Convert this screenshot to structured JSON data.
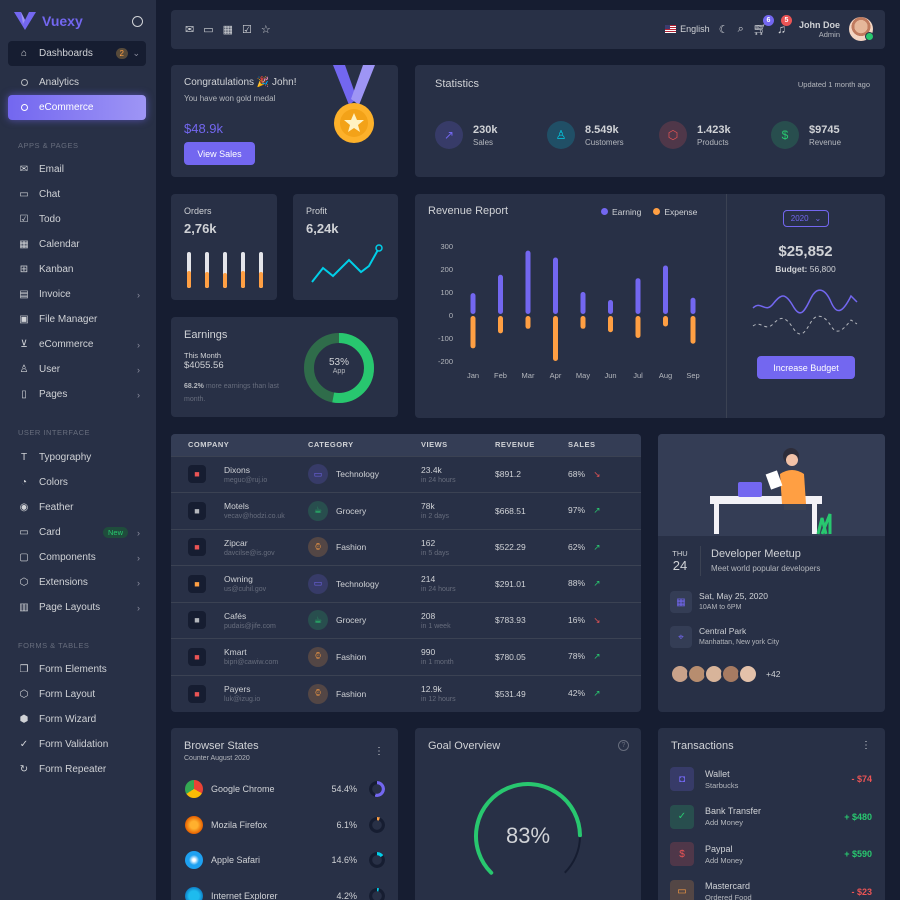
{
  "app": {
    "name": "Vuexy"
  },
  "sidebar": {
    "dashboards": {
      "label": "Dashboards",
      "badge": "2"
    },
    "dash_children": [
      {
        "label": "Analytics"
      },
      {
        "label": "eCommerce"
      }
    ],
    "sections": [
      "APPS & PAGES",
      "USER INTERFACE",
      "FORMS & TABLES"
    ],
    "apps": [
      {
        "label": "Email",
        "icon": "mail-icon"
      },
      {
        "label": "Chat",
        "icon": "chat-icon"
      },
      {
        "label": "Todo",
        "icon": "check-square-icon"
      },
      {
        "label": "Calendar",
        "icon": "calendar-icon"
      },
      {
        "label": "Kanban",
        "icon": "grid-icon"
      },
      {
        "label": "Invoice",
        "icon": "file-text-icon"
      },
      {
        "label": "File Manager",
        "icon": "save-icon"
      },
      {
        "label": "eCommerce",
        "icon": "cart-icon"
      },
      {
        "label": "User",
        "icon": "user-icon"
      },
      {
        "label": "Pages",
        "icon": "file-icon"
      }
    ],
    "ui": [
      {
        "label": "Typography",
        "icon": "type-icon"
      },
      {
        "label": "Colors",
        "icon": "droplet-icon"
      },
      {
        "label": "Feather",
        "icon": "eye-icon"
      },
      {
        "label": "Card",
        "icon": "credit-card-icon",
        "badge": "New"
      },
      {
        "label": "Components",
        "icon": "briefcase-icon"
      },
      {
        "label": "Extensions",
        "icon": "box-icon"
      },
      {
        "label": "Page Layouts",
        "icon": "layout-icon"
      }
    ],
    "forms": [
      {
        "label": "Form Elements",
        "icon": "copy-icon"
      },
      {
        "label": "Form Layout",
        "icon": "box-icon"
      },
      {
        "label": "Form Wizard",
        "icon": "package-icon"
      },
      {
        "label": "Form Validation",
        "icon": "check-circle-icon"
      },
      {
        "label": "Form Repeater",
        "icon": "rotate-icon"
      }
    ]
  },
  "header": {
    "language": "English",
    "cart_count": "6",
    "notif_count": "5",
    "user_name": "John Doe",
    "user_role": "Admin"
  },
  "congrats": {
    "title": "Congratulations 🎉 John!",
    "subtitle": "You have won gold medal",
    "amount": "$48.9k",
    "button": "View Sales"
  },
  "statistics": {
    "title": "Statistics",
    "updated": "Updated 1 month ago",
    "items": [
      {
        "value": "230k",
        "label": "Sales",
        "icon": "trending-up-icon",
        "color": "#7367f0"
      },
      {
        "value": "8.549k",
        "label": "Customers",
        "icon": "user-icon",
        "color": "#00cfe8"
      },
      {
        "value": "1.423k",
        "label": "Products",
        "icon": "box-icon",
        "color": "#ea5455"
      },
      {
        "value": "$9745",
        "label": "Revenue",
        "icon": "dollar-icon",
        "color": "#28c76f"
      }
    ]
  },
  "orders": {
    "title": "Orders",
    "value": "2,76k",
    "bar_levels": [
      0.8,
      0.75,
      0.7,
      0.8,
      0.75
    ]
  },
  "profit": {
    "title": "Profit",
    "value": "6,24k"
  },
  "earnings": {
    "title": "Earnings",
    "period": "This Month",
    "amount": "$4055.56",
    "pct": "68.2%",
    "note": "more earnings than last month.",
    "donut_value": "53%",
    "donut_label": "App",
    "donut_fraction": 0.53
  },
  "revenue": {
    "title": "Revenue Report",
    "legend": [
      "Earning",
      "Expense"
    ],
    "year": "2020",
    "total": "$25,852",
    "budget_label": "Budget:",
    "budget_value": "56,800",
    "button": "Increase Budget"
  },
  "chart_data": {
    "type": "bar",
    "categories": [
      "Jan",
      "Feb",
      "Mar",
      "Apr",
      "May",
      "Jun",
      "Jul",
      "Aug",
      "Sep"
    ],
    "series": [
      {
        "name": "Earning",
        "values": [
          95,
          175,
          280,
          250,
          100,
          65,
          160,
          215,
          75
        ]
      },
      {
        "name": "Expense",
        "values": [
          -145,
          -80,
          -60,
          -200,
          -60,
          -75,
          -100,
          -50,
          -125
        ]
      }
    ],
    "ylim": [
      -200,
      300
    ],
    "yticks": [
      "300",
      "200",
      "100",
      "0",
      "-100",
      "-200"
    ]
  },
  "table": {
    "headers": [
      "COMPANY",
      "CATEGORY",
      "VIEWS",
      "REVENUE",
      "SALES"
    ],
    "rows": [
      {
        "company": "Dixons",
        "email": "meguc@ruj.io",
        "category": "Technology",
        "views": "23.4k",
        "period": "in 24 hours",
        "revenue": "$891.2",
        "sales": "68%",
        "trend": "down"
      },
      {
        "company": "Motels",
        "email": "vecav@hodzi.co.uk",
        "category": "Grocery",
        "views": "78k",
        "period": "in 2 days",
        "revenue": "$668.51",
        "sales": "97%",
        "trend": "up"
      },
      {
        "company": "Zipcar",
        "email": "davcilse@is.gov",
        "category": "Fashion",
        "views": "162",
        "period": "in 5 days",
        "revenue": "$522.29",
        "sales": "62%",
        "trend": "up"
      },
      {
        "company": "Owning",
        "email": "us@cuhil.gov",
        "category": "Technology",
        "views": "214",
        "period": "in 24 hours",
        "revenue": "$291.01",
        "sales": "88%",
        "trend": "up"
      },
      {
        "company": "Cafés",
        "email": "pudais@jife.com",
        "category": "Grocery",
        "views": "208",
        "period": "in 1 week",
        "revenue": "$783.93",
        "sales": "16%",
        "trend": "down"
      },
      {
        "company": "Kmart",
        "email": "bipri@cawiw.com",
        "category": "Fashion",
        "views": "990",
        "period": "in 1 month",
        "revenue": "$780.05",
        "sales": "78%",
        "trend": "up"
      },
      {
        "company": "Payers",
        "email": "luk@izug.io",
        "category": "Fashion",
        "views": "12.9k",
        "period": "in 12 hours",
        "revenue": "$531.49",
        "sales": "42%",
        "trend": "up"
      }
    ]
  },
  "meetup": {
    "day": "THU",
    "date": "24",
    "title": "Developer Meetup",
    "subtitle": "Meet world popular developers",
    "when": "Sat, May 25, 2020",
    "time": "10AM to 6PM",
    "where": "Central Park",
    "address": "Manhattan, New york City",
    "more": "+42"
  },
  "browsers": {
    "title": "Browser States",
    "subtitle": "Counter August 2020",
    "items": [
      {
        "name": "Google Chrome",
        "pct": "54.4%",
        "color": "#7367f0",
        "fraction": 0.544
      },
      {
        "name": "Mozila Firefox",
        "pct": "6.1%",
        "color": "#ff9f43",
        "fraction": 0.061
      },
      {
        "name": "Apple Safari",
        "pct": "14.6%",
        "color": "#00cfe8",
        "fraction": 0.146
      },
      {
        "name": "Internet Explorer",
        "pct": "4.2%",
        "color": "#00cfe8",
        "fraction": 0.042
      }
    ]
  },
  "goal": {
    "title": "Goal Overview",
    "value": "83%",
    "fraction": 0.83
  },
  "transactions": {
    "title": "Transactions",
    "items": [
      {
        "name": "Wallet",
        "sub": "Starbucks",
        "amount": "- $74",
        "color": "#7367f0",
        "amount_color": "#ea5455",
        "icon": "pocket-icon"
      },
      {
        "name": "Bank Transfer",
        "sub": "Add Money",
        "amount": "+ $480",
        "color": "#28c76f",
        "amount_color": "#28c76f",
        "icon": "check-icon"
      },
      {
        "name": "Paypal",
        "sub": "Add Money",
        "amount": "+ $590",
        "color": "#ea5455",
        "amount_color": "#28c76f",
        "icon": "dollar-icon"
      },
      {
        "name": "Mastercard",
        "sub": "Ordered Food",
        "amount": "- $23",
        "color": "#ff9f43",
        "amount_color": "#ea5455",
        "icon": "credit-card-icon"
      }
    ]
  }
}
